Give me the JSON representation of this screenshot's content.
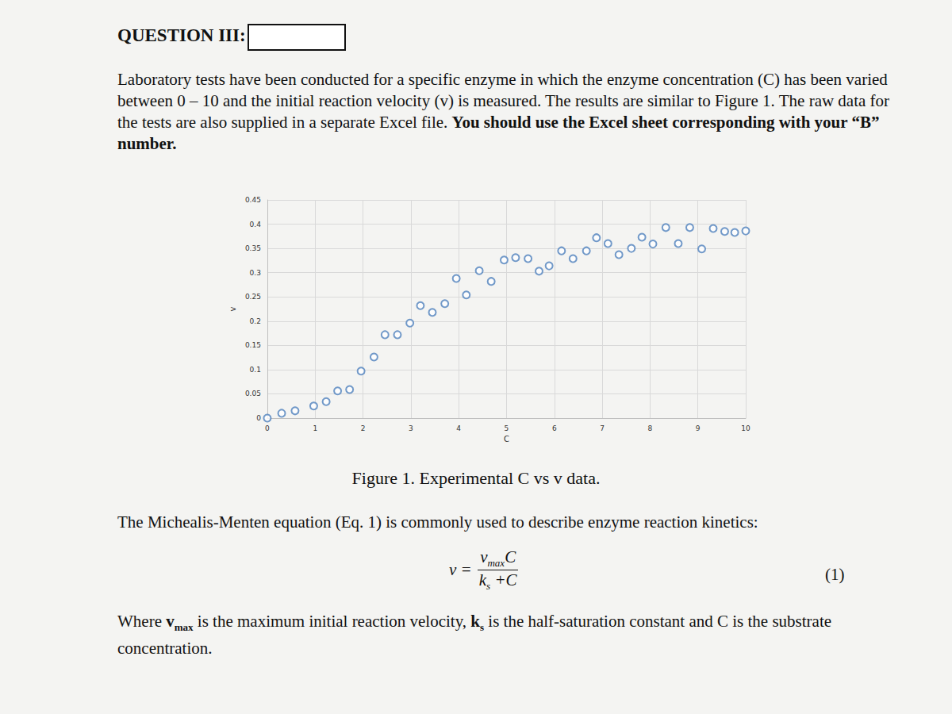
{
  "document": {
    "heading": "QUESTION III:",
    "paragraph1": [
      {
        "text": "Laboratory tests have been conducted for a specific enzyme in which the enzyme concentration (C) has been varied between 0 – 10 and the initial reaction velocity (v) is measured. The results are similar to Figure 1. The raw data for the tests are also supplied in a separate Excel file. ",
        "bold": false
      },
      {
        "text": "You should use the Excel sheet corresponding with your “B” number.",
        "bold": true
      }
    ],
    "caption": "Figure 1. Experimental C vs v data.",
    "paragraph2": [
      {
        "text": "The Michealis-Menten equation (Eq. 1) is commonly used to describe enzyme reaction kinetics:",
        "bold": false
      }
    ],
    "equation": {
      "lhs": "v =",
      "numerator": [
        {
          "text": "v",
          "sub": false
        },
        {
          "text": "max",
          "sub": true
        },
        {
          "text": "C",
          "sub": false
        }
      ],
      "denominator": [
        {
          "text": "k",
          "sub": false
        },
        {
          "text": "s",
          "sub": true
        },
        {
          "text": " +C",
          "sub": false
        }
      ],
      "number": "(1)"
    },
    "paragraph3": [
      {
        "text": "Where ",
        "bold": false
      },
      {
        "text": "v",
        "bold": true
      },
      {
        "text": "max",
        "bold": true,
        "sub": true
      },
      {
        "text": " is the maximum initial reaction velocity, ",
        "bold": false
      },
      {
        "text": "k",
        "bold": true
      },
      {
        "text": "s",
        "bold": true,
        "sub": true
      },
      {
        "text": " is the half-saturation constant and C is the substrate concentration.",
        "bold": false
      }
    ]
  },
  "chart_data": {
    "type": "scatter",
    "x_label": "C",
    "y_label": "v",
    "x": [
      0,
      0.3,
      0.58,
      0.97,
      1.23,
      1.47,
      1.72,
      1.96,
      2.23,
      2.46,
      2.72,
      2.98,
      3.2,
      3.45,
      3.71,
      3.95,
      4.16,
      4.43,
      4.68,
      4.95,
      5.19,
      5.45,
      5.68,
      5.89,
      6.15,
      6.39,
      6.67,
      6.88,
      7.12,
      7.35,
      7.61,
      7.83,
      8.06,
      8.33,
      8.59,
      8.83,
      9.08,
      9.32,
      9.56,
      9.77,
      10
    ],
    "values": [
      0,
      0.01,
      0.015,
      0.025,
      0.034,
      0.056,
      0.059,
      0.097,
      0.126,
      0.172,
      0.172,
      0.196,
      0.232,
      0.218,
      0.236,
      0.288,
      0.254,
      0.304,
      0.282,
      0.326,
      0.331,
      0.329,
      0.303,
      0.314,
      0.345,
      0.329,
      0.345,
      0.372,
      0.36,
      0.337,
      0.35,
      0.373,
      0.359,
      0.393,
      0.36,
      0.393,
      0.349,
      0.391,
      0.385,
      0.383,
      0.386
    ],
    "color": "#4f81bd",
    "marker": "open_circle",
    "xlim": [
      0,
      10
    ],
    "xticks": [
      0,
      1,
      2,
      3,
      4,
      5,
      6,
      7,
      8,
      9,
      10
    ],
    "ylim": [
      0,
      0.45
    ],
    "yticks": [
      0,
      0.05,
      0.1,
      0.15,
      0.2,
      0.25,
      0.3,
      0.35,
      0.4,
      0.45
    ],
    "grid": true
  }
}
